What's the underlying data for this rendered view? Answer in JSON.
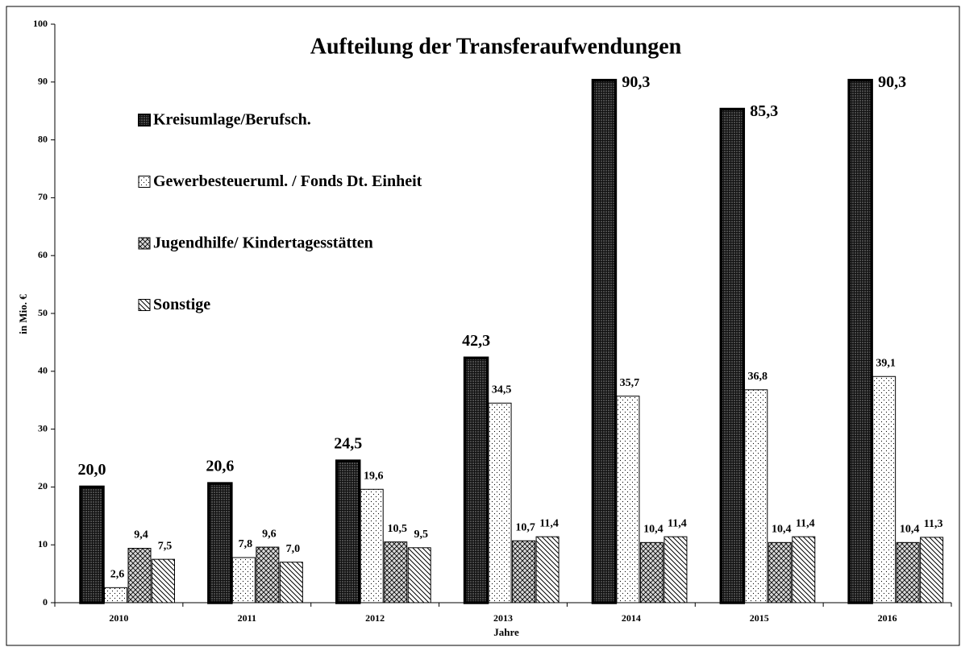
{
  "chart_data": {
    "type": "bar",
    "title": "Aufteilung der Transferaufwendungen",
    "x_label": "Jahre",
    "y_label": "in Mio. €",
    "categories": [
      "2010",
      "2011",
      "2012",
      "2013",
      "2014",
      "2015",
      "2016"
    ],
    "series": [
      {
        "name": "Kreisumlage/Berufsch.",
        "color": "#555555",
        "values": [
          20.0,
          20.6,
          24.5,
          42.3,
          90.3,
          85.3,
          90.3
        ],
        "value_labels": [
          "20,0",
          "20,6",
          "24,5",
          "42,3",
          "90,3",
          "85,3",
          "90,3"
        ]
      },
      {
        "name": "Gewerbesteueruml. / Fonds Dt. Einheit",
        "color": "#ffffff",
        "values": [
          2.6,
          7.8,
          19.6,
          34.5,
          35.7,
          36.8,
          39.1
        ],
        "value_labels": [
          "2,6",
          "7,8",
          "19,6",
          "34,5",
          "35,7",
          "36,8",
          "39,1"
        ]
      },
      {
        "name": "Jugendhilfe/ Kindertagesstätten",
        "color": "#d9d9d9",
        "values": [
          9.4,
          9.6,
          10.5,
          10.7,
          10.4,
          10.4,
          10.4
        ],
        "value_labels": [
          "9,4",
          "9,6",
          "10,5",
          "10,7",
          "10,4",
          "10,4",
          "10,4"
        ]
      },
      {
        "name": "Sonstige",
        "color": "#ffffff",
        "values": [
          7.5,
          7.0,
          9.5,
          11.4,
          11.4,
          11.4,
          11.3
        ],
        "value_labels": [
          "7,5",
          "7,0",
          "9,5",
          "11,4",
          "11,4",
          "11,4",
          "11,3"
        ]
      }
    ],
    "ylim": [
      0,
      100
    ],
    "yticks": [
      0,
      10,
      20,
      30,
      40,
      50,
      60,
      70,
      80,
      90,
      100
    ],
    "legend": "upper left"
  }
}
